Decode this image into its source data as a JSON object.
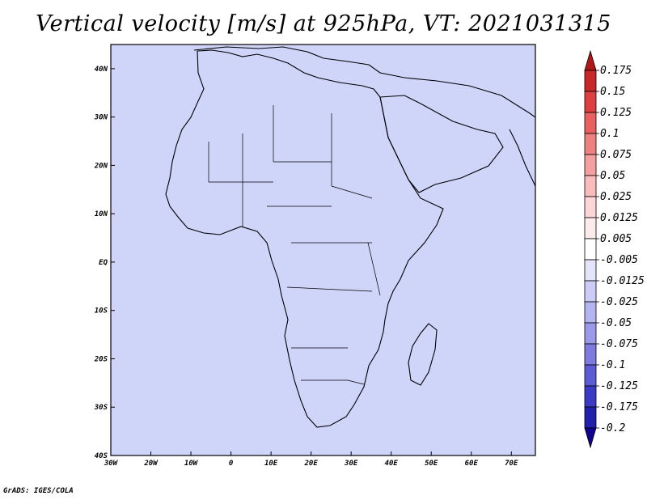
{
  "chart_data": {
    "type": "heatmap",
    "title": "Vertical velocity [m/s] at 925hPa, VT: 2021031315",
    "variable": "Vertical velocity",
    "units": "m/s",
    "level": "925hPa",
    "valid_time": "2021031315",
    "x": {
      "label": "",
      "range": [
        -30,
        76
      ],
      "ticks": [
        -30,
        -20,
        -10,
        0,
        10,
        20,
        30,
        40,
        50,
        60,
        70
      ],
      "tick_labels": [
        "30W",
        "20W",
        "10W",
        "0",
        "10E",
        "20E",
        "30E",
        "40E",
        "50E",
        "60E",
        "70E"
      ]
    },
    "y": {
      "label": "",
      "range": [
        -40,
        45
      ],
      "ticks": [
        -40,
        -30,
        -20,
        -10,
        0,
        10,
        20,
        30,
        40
      ],
      "tick_labels": [
        "40S",
        "30S",
        "20S",
        "10S",
        "EQ",
        "10N",
        "20N",
        "30N",
        "40N"
      ]
    },
    "colorbar": {
      "levels": [
        "0.175",
        "0.15",
        "0.125",
        "0.1",
        "0.075",
        "0.05",
        "0.025",
        "0.0125",
        "0.005",
        "-0.005",
        "-0.0125",
        "-0.025",
        "-0.05",
        "-0.075",
        "-0.1",
        "-0.125",
        "-0.175",
        "-0.2"
      ],
      "colors": [
        "#b01818",
        "#c82828",
        "#dc4040",
        "#e86060",
        "#ef8080",
        "#f4a0a0",
        "#f8bcbc",
        "#fcd6d6",
        "#fdeaea",
        "#ffffff",
        "#e4e4fb",
        "#ccccf6",
        "#b4b4f0",
        "#9a9ae8",
        "#7c7ce0",
        "#5c5cd4",
        "#3a3ac4",
        "#2020ac",
        "#100090"
      ]
    }
  },
  "footer": "GrADS: IGES/COLA"
}
